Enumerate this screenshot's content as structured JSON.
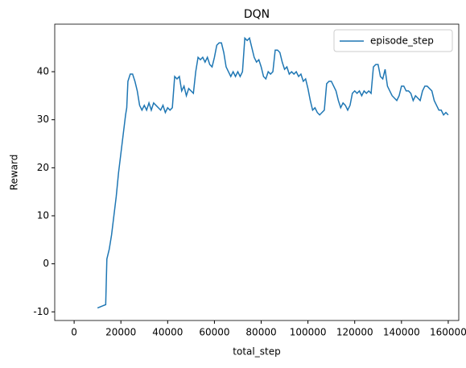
{
  "chart_data": {
    "type": "line",
    "title": "DQN",
    "x_label": "total_step",
    "y_label": "Reward",
    "x": [
      10000,
      12000,
      13500,
      14000,
      15000,
      16000,
      17000,
      18000,
      19000,
      20000,
      21000,
      22000,
      22500,
      23000,
      24000,
      25000,
      26000,
      27000,
      28000,
      29000,
      30000,
      31000,
      32000,
      33000,
      34000,
      35000,
      36000,
      37000,
      38000,
      39000,
      40000,
      41000,
      42000,
      43000,
      44000,
      45000,
      46000,
      47000,
      48000,
      49000,
      50000,
      51000,
      52000,
      53000,
      54000,
      55000,
      56000,
      57000,
      58000,
      59000,
      60000,
      61000,
      62000,
      63000,
      64000,
      65000,
      66000,
      67000,
      68000,
      69000,
      70000,
      71000,
      72000,
      73000,
      74000,
      75000,
      76000,
      77000,
      78000,
      79000,
      80000,
      81000,
      82000,
      83000,
      84000,
      85000,
      86000,
      87000,
      88000,
      89000,
      90000,
      91000,
      92000,
      93000,
      94000,
      95000,
      96000,
      97000,
      98000,
      99000,
      100000,
      101000,
      102000,
      103000,
      104000,
      105000,
      106000,
      107000,
      108000,
      109000,
      110000,
      111000,
      112000,
      113000,
      114000,
      115000,
      116000,
      117000,
      118000,
      119000,
      120000,
      121000,
      122000,
      123000,
      124000,
      125000,
      126000,
      127000,
      128000,
      129000,
      130000,
      131000,
      132000,
      133000,
      134000,
      135000,
      136000,
      137000,
      138000,
      139000,
      140000,
      141000,
      142000,
      143000,
      144000,
      145000,
      146000,
      147000,
      148000,
      149000,
      150000,
      151000,
      152000,
      153000,
      154000,
      155000,
      156000,
      157000,
      158000,
      159000,
      160000
    ],
    "series": [
      {
        "name": "episode_step",
        "color": "#1f77b4",
        "values": [
          -9.2,
          -8.8,
          -8.5,
          1,
          3,
          6,
          10,
          14,
          19,
          23,
          27,
          31,
          32.5,
          38,
          39.5,
          39.5,
          38,
          36,
          33,
          32,
          33,
          32,
          33.5,
          32,
          33.5,
          33,
          32.5,
          32,
          33,
          31.5,
          32.5,
          32,
          32.5,
          39,
          38.5,
          39,
          36,
          37,
          35,
          36.5,
          36,
          35.5,
          40,
          43,
          42.5,
          43,
          42,
          43,
          41.5,
          41,
          43,
          45.5,
          46,
          46,
          44,
          41,
          40,
          39,
          40,
          39,
          40,
          39,
          40,
          47,
          46.5,
          47,
          45,
          43,
          42,
          42.5,
          41,
          39,
          38.5,
          40,
          39.5,
          40,
          44.5,
          44.5,
          44,
          42,
          40.5,
          41,
          39.5,
          40,
          39.5,
          40,
          39,
          39.5,
          38,
          38.5,
          36.5,
          34,
          32,
          32.5,
          31.5,
          31,
          31.5,
          32,
          37.5,
          38,
          38,
          37,
          36,
          34,
          32.5,
          33.5,
          33,
          32,
          33,
          35.5,
          36,
          35.5,
          36,
          35,
          36,
          35.5,
          36,
          35.5,
          41,
          41.5,
          41.5,
          39,
          38.5,
          40.5,
          37,
          36,
          35,
          34.5,
          34,
          35,
          37,
          37,
          36,
          36,
          35.5,
          34,
          35,
          34.5,
          34,
          36,
          37,
          37,
          36.5,
          36,
          34,
          33,
          32,
          32,
          31,
          31.5,
          31
        ]
      }
    ],
    "xlim": [
      -8300,
      164500
    ],
    "ylim": [
      -11.8,
      49.9
    ],
    "xticks": [
      0,
      20000,
      40000,
      60000,
      80000,
      100000,
      120000,
      140000,
      160000
    ],
    "yticks": [
      -10,
      0,
      10,
      20,
      30,
      40
    ],
    "legend": "upper right"
  }
}
